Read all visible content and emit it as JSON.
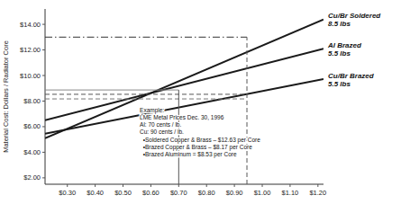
{
  "chart_data": {
    "type": "line",
    "y_label": "Material Cost: Dollars / Radiator Core",
    "xlim": [
      0.22,
      1.22
    ],
    "ylim": [
      1.5,
      15.2
    ],
    "xticks": [
      {
        "value": 0.3,
        "label": "$0.30"
      },
      {
        "value": 0.4,
        "label": "$0.40"
      },
      {
        "value": 0.5,
        "label": "$0.50"
      },
      {
        "value": 0.6,
        "label": "$0.60"
      },
      {
        "value": 0.7,
        "label": "$0.70"
      },
      {
        "value": 0.8,
        "label": "$0.80"
      },
      {
        "value": 0.9,
        "label": "$0.90"
      },
      {
        "value": 1.0,
        "label": "$1.00"
      },
      {
        "value": 1.1,
        "label": "$1.10"
      },
      {
        "value": 1.2,
        "label": "$1.20"
      }
    ],
    "yticks": [
      {
        "value": 2.0,
        "label": "$2.00"
      },
      {
        "value": 4.0,
        "label": "$4.00"
      },
      {
        "value": 6.0,
        "label": "$6.00"
      },
      {
        "value": 8.0,
        "label": "$8.00"
      },
      {
        "value": 10.0,
        "label": "$10.00"
      },
      {
        "value": 12.0,
        "label": "$12.00"
      },
      {
        "value": 14.0,
        "label": "$14.00"
      }
    ],
    "grid": false,
    "series": [
      {
        "name": "Cu/Br Soldered\n8.5 lbs",
        "color": "#1a1a1a",
        "line_style": "solid",
        "x": [
          0.22,
          1.22
        ],
        "values": [
          5.1,
          14.38
        ]
      },
      {
        "name": "Al Brazed\n5.5 lbs",
        "color": "#1a1a1a",
        "line_style": "solid",
        "x": [
          0.22,
          1.22
        ],
        "values": [
          6.5,
          12.1
        ]
      },
      {
        "name": "Cu/Br Brazed\n5.5 lbs",
        "color": "#1a1a1a",
        "line_style": "solid",
        "x": [
          0.22,
          1.22
        ],
        "values": [
          5.45,
          9.72
        ]
      },
      {
        "color": "#333333",
        "line_style": "dashdot",
        "x": [
          0.22,
          0.945
        ],
        "values": [
          13.0,
          13.0
        ]
      },
      {
        "color": "#555555",
        "line_style": "dashed",
        "x": [
          0.22,
          0.945
        ],
        "values": [
          8.53,
          8.53
        ]
      },
      {
        "color": "#777777",
        "line_style": "dashed",
        "x": [
          0.22,
          0.945
        ],
        "values": [
          8.17,
          8.17
        ]
      },
      {
        "color": "#888888",
        "line_style": "solid",
        "x": [
          0.22,
          0.7
        ],
        "values": [
          8.87,
          8.87
        ]
      },
      {
        "color": "#555555",
        "line_style": "solid",
        "x": [
          0.7,
          0.7
        ],
        "values": [
          1.5,
          8.87
        ]
      },
      {
        "color": "#555555",
        "line_style": "dashed",
        "x": [
          0.945,
          0.945
        ],
        "values": [
          1.5,
          13.0
        ]
      }
    ],
    "annotations": [
      {
        "text": "Example:\nLME Metal Prices Dec. 30, 1996\nAl: 70 cents / lb.\nCu: 90 cents / lb.\n  •Soldered Copper & Brass – $12.63 per Core\n  •Brazed Copper & Brass – $8.17 per Core\n  •Brazed Aluminum = $8.53 per Core",
        "x": 0.56,
        "y": 7.55
      }
    ]
  }
}
